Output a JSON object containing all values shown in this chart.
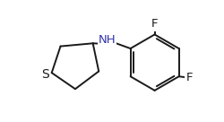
{
  "background_color": "#ffffff",
  "bond_color": "#1a1a1a",
  "atom_colors": {
    "S": "#1a1a1a",
    "N": "#3333aa",
    "F": "#1a1a1a"
  },
  "figsize": [
    2.5,
    1.36
  ],
  "dpi": 100,
  "line_width": 1.4,
  "font_size": 9.5,
  "xlim": [
    -1.8,
    4.2
  ],
  "ylim": [
    -2.0,
    2.1
  ]
}
